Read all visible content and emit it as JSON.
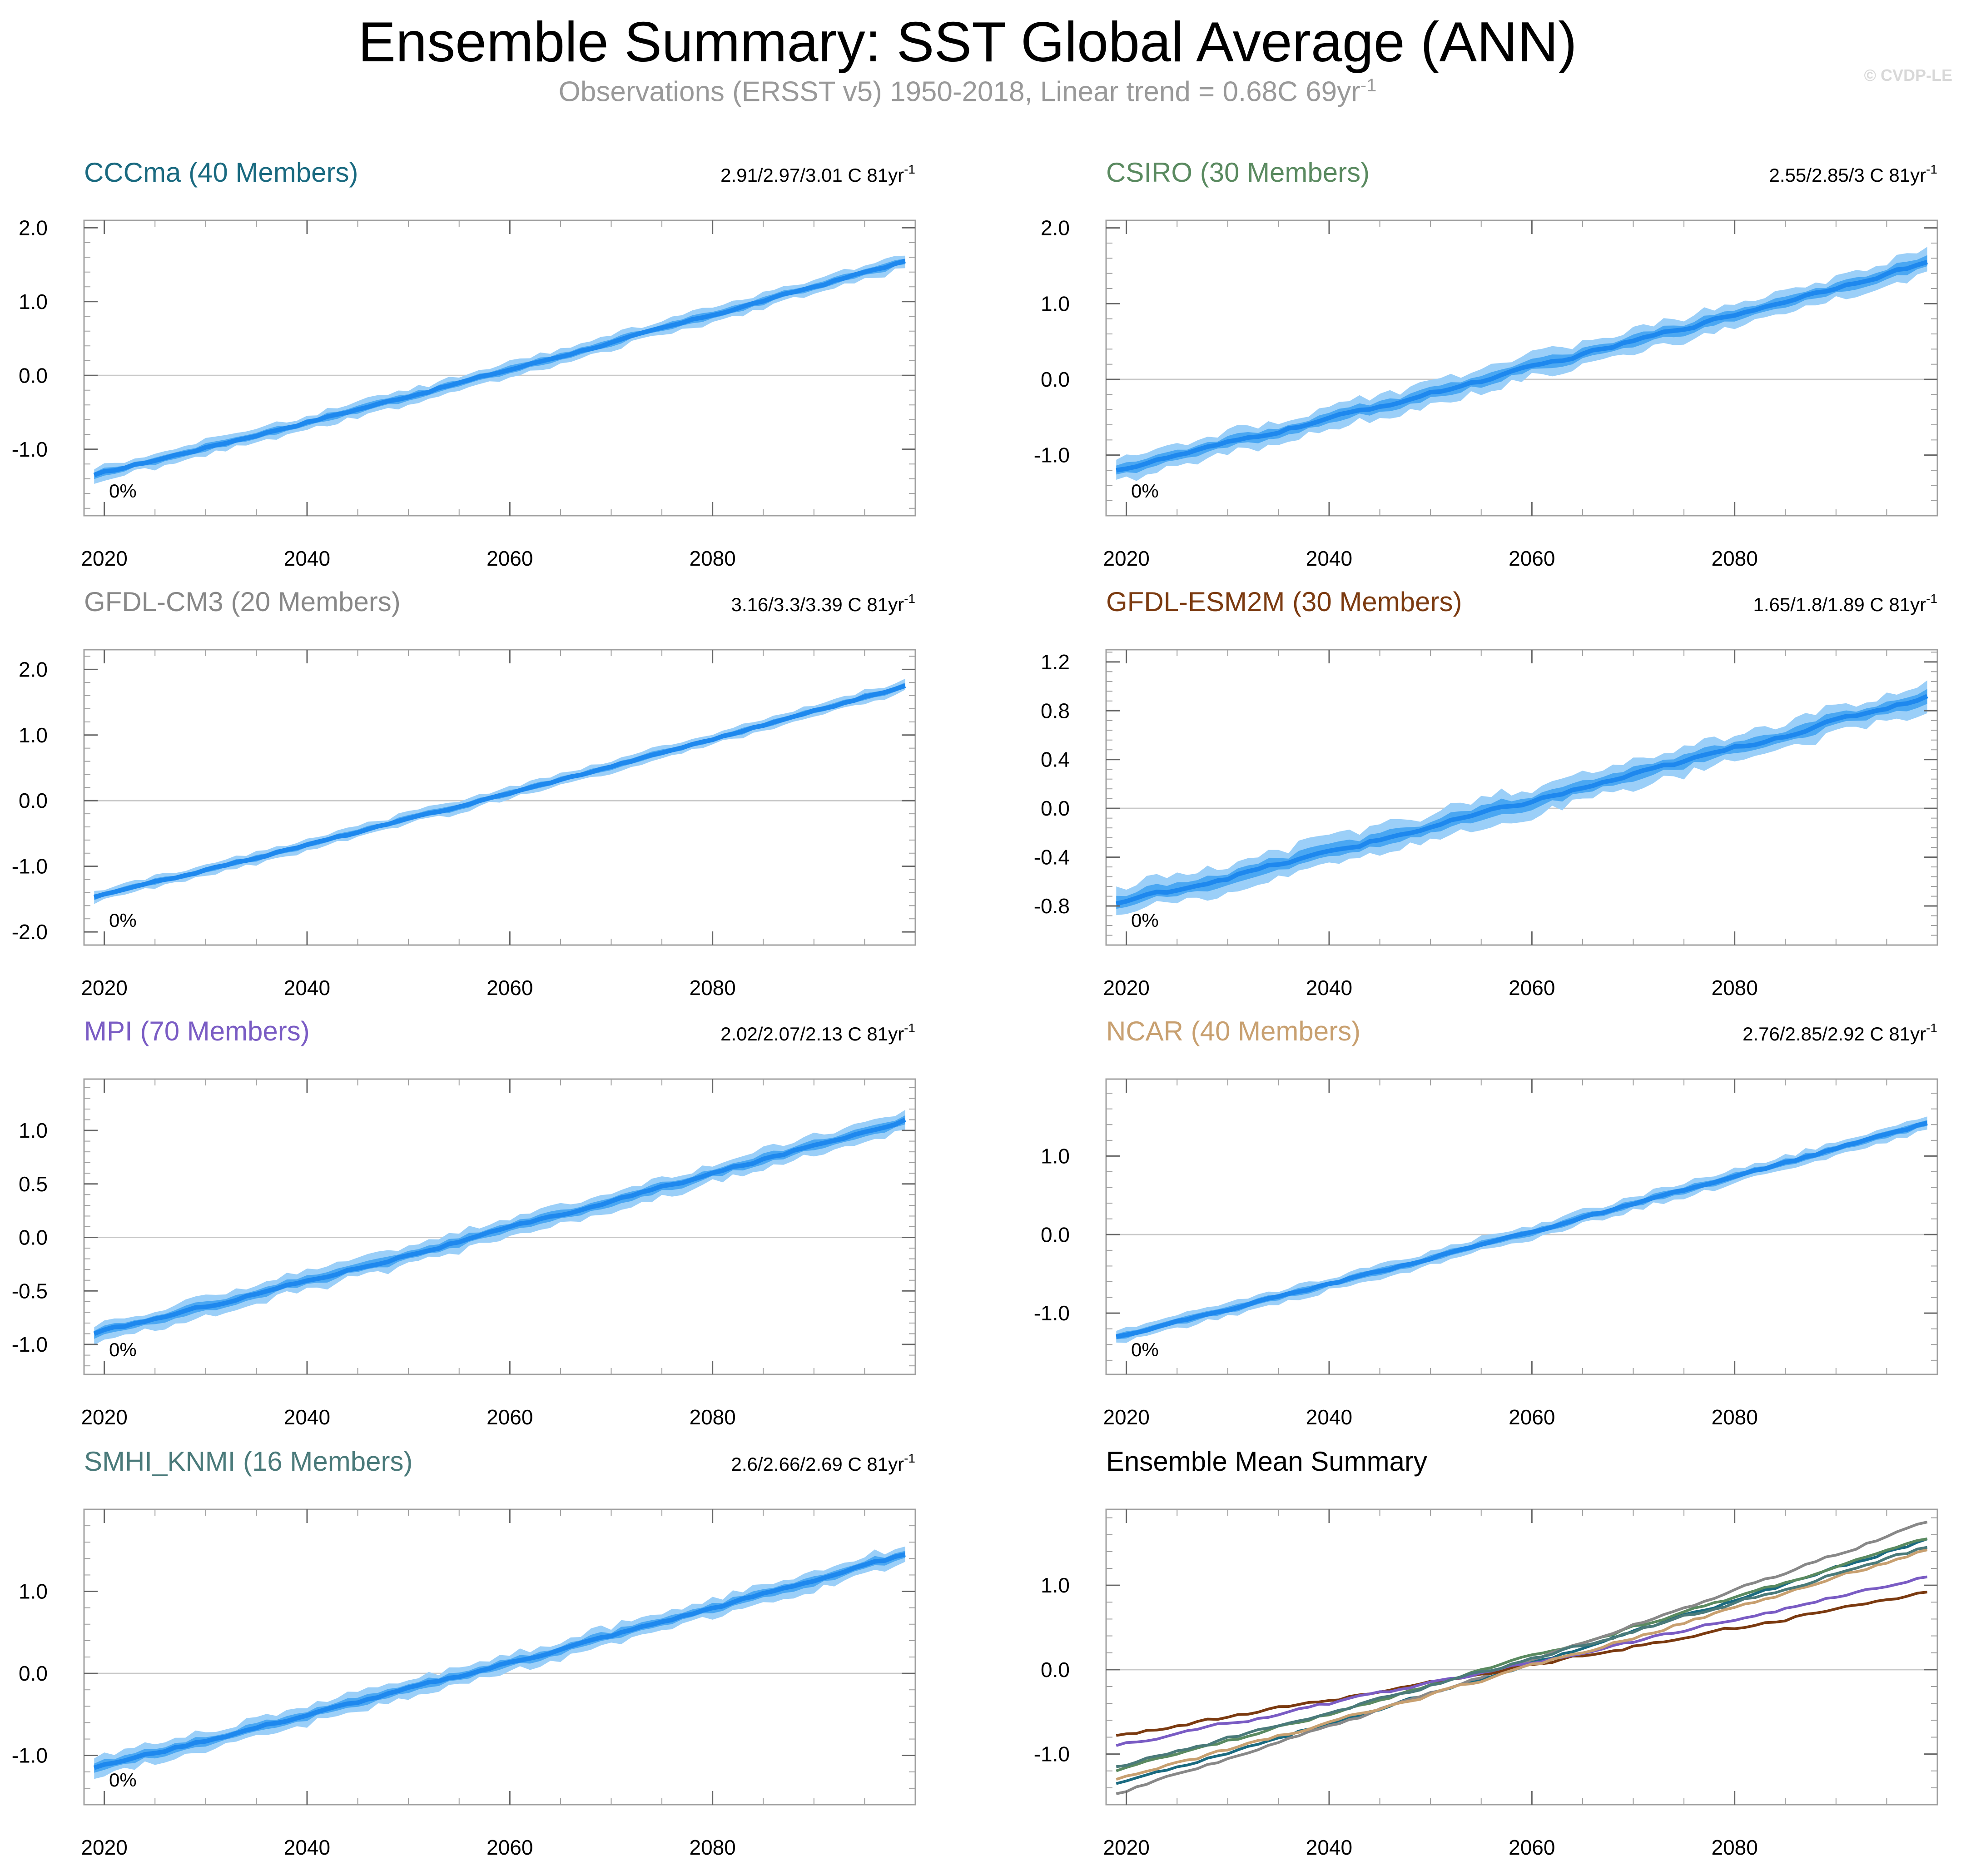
{
  "header": {
    "title": "Ensemble Summary: SST Global Average (ANN)",
    "subtitle_main": "Observations (ERSST v5) 1950-2018, Linear trend = 0.68C 69yr",
    "subtitle_sup": "-1",
    "copyright": "© CVDP-LE"
  },
  "colors": {
    "band_outer": "#9bcff8",
    "band_inner": "#4aa7f2",
    "mean_line": "#1e88ee",
    "grid": "#c8c8c8",
    "frame": "#a0a0a0"
  },
  "chart_data": [
    {
      "type": "area",
      "title": "CCCma (40 Members)",
      "title_color": "#1a6a80",
      "trend_text": "2.91/2.97/3.01 C 81yr",
      "trend_sup": "-1",
      "percent_label": "0%",
      "x": [
        2019,
        2099
      ],
      "start": -1.35,
      "end": 1.55,
      "spread": 0.08,
      "ylim": [
        -1.9,
        2.1
      ],
      "yticks": [
        -1.0,
        0.0,
        1.0,
        2.0
      ],
      "ytick_labels": [
        "-1.0",
        "0.0",
        "1.0",
        "2.0"
      ],
      "xticks": [
        2020,
        2040,
        2060,
        2080
      ],
      "xtick_labels": [
        "2020",
        "2040",
        "2060",
        "2080"
      ],
      "grid_y": 0.0
    },
    {
      "type": "area",
      "title": "CSIRO (30 Members)",
      "title_color": "#5a8a60",
      "trend_text": "2.55/2.85/3 C 81yr",
      "trend_sup": "-1",
      "percent_label": "0%",
      "x": [
        2019,
        2099
      ],
      "start": -1.2,
      "end": 1.55,
      "spread": 0.12,
      "ylim": [
        -1.8,
        2.1
      ],
      "yticks": [
        -1.0,
        0.0,
        1.0,
        2.0
      ],
      "ytick_labels": [
        "-1.0",
        "0.0",
        "1.0",
        "2.0"
      ],
      "xticks": [
        2020,
        2040,
        2060,
        2080
      ],
      "xtick_labels": [
        "2020",
        "2040",
        "2060",
        "2080"
      ],
      "grid_y": 0.0
    },
    {
      "type": "area",
      "title": "GFDL-CM3 (20 Members)",
      "title_color": "#888888",
      "trend_text": "3.16/3.3/3.39 C 81yr",
      "trend_sup": "-1",
      "percent_label": "0%",
      "x": [
        2019,
        2099
      ],
      "start": -1.47,
      "end": 1.75,
      "spread": 0.07,
      "ylim": [
        -2.2,
        2.3
      ],
      "yticks": [
        -2.0,
        -1.0,
        0.0,
        1.0,
        2.0
      ],
      "ytick_labels": [
        "-2.0",
        "-1.0",
        "0.0",
        "1.0",
        "2.0"
      ],
      "xticks": [
        2020,
        2040,
        2060,
        2080
      ],
      "xtick_labels": [
        "2020",
        "2040",
        "2060",
        "2080"
      ],
      "grid_y": 0.0
    },
    {
      "type": "area",
      "title": "GFDL-ESM2M (30 Members)",
      "title_color": "#7b3a10",
      "trend_text": "1.65/1.8/1.89 C 81yr",
      "trend_sup": "-1",
      "percent_label": "0%",
      "x": [
        2019,
        2099
      ],
      "start": -0.78,
      "end": 0.92,
      "spread": 0.09,
      "ylim": [
        -1.12,
        1.3
      ],
      "yticks": [
        -0.8,
        -0.4,
        0.0,
        0.4,
        0.8,
        1.2
      ],
      "ytick_labels": [
        "-0.8",
        "-0.4",
        "0.0",
        "0.4",
        "0.8",
        "1.2"
      ],
      "xticks": [
        2020,
        2040,
        2060,
        2080
      ],
      "xtick_labels": [
        "2020",
        "2040",
        "2060",
        "2080"
      ],
      "grid_y": 0.0
    },
    {
      "type": "area",
      "title": "MPI (70 Members)",
      "title_color": "#7a5cc4",
      "trend_text": "2.02/2.07/2.13 C 81yr",
      "trend_sup": "-1",
      "percent_label": "0%",
      "x": [
        2019,
        2099
      ],
      "start": -0.9,
      "end": 1.1,
      "spread": 0.07,
      "ylim": [
        -1.28,
        1.48
      ],
      "yticks": [
        -1.0,
        -0.5,
        0.0,
        0.5,
        1.0
      ],
      "ytick_labels": [
        "-1.0",
        "-0.5",
        "0.0",
        "0.5",
        "1.0"
      ],
      "xticks": [
        2020,
        2040,
        2060,
        2080
      ],
      "xtick_labels": [
        "2020",
        "2040",
        "2060",
        "2080"
      ],
      "grid_y": 0.0
    },
    {
      "type": "area",
      "title": "NCAR (40 Members)",
      "title_color": "#c8a070",
      "trend_text": "2.76/2.85/2.92 C 81yr",
      "trend_sup": "-1",
      "percent_label": "0%",
      "x": [
        2019,
        2099
      ],
      "start": -1.3,
      "end": 1.42,
      "spread": 0.07,
      "ylim": [
        -1.78,
        1.98
      ],
      "yticks": [
        -1.0,
        0.0,
        1.0
      ],
      "ytick_labels": [
        "-1.0",
        "0.0",
        "1.0"
      ],
      "xticks": [
        2020,
        2040,
        2060,
        2080
      ],
      "xtick_labels": [
        "2020",
        "2040",
        "2060",
        "2080"
      ],
      "grid_y": 0.0
    },
    {
      "type": "area",
      "title": "SMHI_KNMI (16 Members)",
      "title_color": "#4a7a7a",
      "trend_text": "2.6/2.66/2.69 C 81yr",
      "trend_sup": "-1",
      "percent_label": "0%",
      "x": [
        2019,
        2099
      ],
      "start": -1.15,
      "end": 1.45,
      "spread": 0.09,
      "ylim": [
        -1.6,
        2.0
      ],
      "yticks": [
        -1.0,
        0.0,
        1.0
      ],
      "ytick_labels": [
        "-1.0",
        "0.0",
        "1.0"
      ],
      "xticks": [
        2020,
        2040,
        2060,
        2080
      ],
      "xtick_labels": [
        "2020",
        "2040",
        "2060",
        "2080"
      ],
      "grid_y": 0.0
    },
    {
      "type": "line",
      "title": "Ensemble Mean Summary",
      "title_color": "#000000",
      "x": [
        2019,
        2099
      ],
      "ylim": [
        -1.6,
        1.9
      ],
      "yticks": [
        -1.0,
        0.0,
        1.0
      ],
      "ytick_labels": [
        "-1.0",
        "0.0",
        "1.0"
      ],
      "xticks": [
        2020,
        2040,
        2060,
        2080
      ],
      "xtick_labels": [
        "2020",
        "2040",
        "2060",
        "2080"
      ],
      "grid_y": 0.0,
      "series": [
        {
          "name": "CCCma",
          "color": "#1a6a80",
          "start": -1.35,
          "end": 1.55
        },
        {
          "name": "CSIRO",
          "color": "#5a8a60",
          "start": -1.2,
          "end": 1.55
        },
        {
          "name": "GFDL-CM3",
          "color": "#888888",
          "start": -1.47,
          "end": 1.75
        },
        {
          "name": "GFDL-ESM2M",
          "color": "#7b3a10",
          "start": -0.78,
          "end": 0.92
        },
        {
          "name": "MPI",
          "color": "#7a5cc4",
          "start": -0.9,
          "end": 1.1
        },
        {
          "name": "NCAR",
          "color": "#c8a070",
          "start": -1.3,
          "end": 1.42
        },
        {
          "name": "SMHI_KNMI",
          "color": "#4a7a7a",
          "start": -1.15,
          "end": 1.45
        }
      ]
    }
  ]
}
